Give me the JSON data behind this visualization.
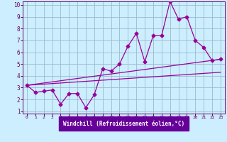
{
  "xlabel": "Windchill (Refroidissement éolien,°C)",
  "bg_color": "#cceeff",
  "line_color": "#990099",
  "label_bg_color": "#660099",
  "label_text_color": "#ffffff",
  "grid_color": "#99bbcc",
  "tick_color": "#660066",
  "xlim": [
    -0.5,
    23.5
  ],
  "ylim": [
    0.8,
    10.3
  ],
  "xticks": [
    0,
    1,
    2,
    3,
    4,
    5,
    6,
    7,
    8,
    9,
    10,
    11,
    12,
    13,
    14,
    15,
    16,
    17,
    18,
    19,
    20,
    21,
    22,
    23
  ],
  "yticks": [
    1,
    2,
    3,
    4,
    5,
    6,
    7,
    8,
    9,
    10
  ],
  "line1_x": [
    0,
    1,
    2,
    3,
    4,
    5,
    6,
    7,
    8,
    9,
    10,
    11,
    12,
    13,
    14,
    15,
    16,
    17,
    18,
    19,
    20,
    21,
    22,
    23
  ],
  "line1_y": [
    3.2,
    2.6,
    2.7,
    2.8,
    1.6,
    2.5,
    2.5,
    1.3,
    2.4,
    4.6,
    4.4,
    5.0,
    6.5,
    7.6,
    5.2,
    7.4,
    7.4,
    10.3,
    8.8,
    9.0,
    7.0,
    6.4,
    5.3,
    5.4
  ],
  "line2_x": [
    0,
    23
  ],
  "line2_y": [
    3.2,
    5.4
  ],
  "line3_x": [
    0,
    23
  ],
  "line3_y": [
    3.2,
    4.3
  ]
}
